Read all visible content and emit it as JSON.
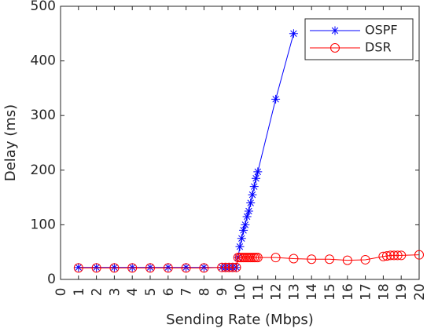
{
  "chart_data": {
    "type": "line",
    "x_label": "Sending Rate (Mbps)",
    "y_label": "Delay (ms)",
    "xlim": [
      0,
      20
    ],
    "xticks": [
      0,
      1,
      2,
      3,
      4,
      5,
      6,
      7,
      8,
      9,
      10,
      11,
      12,
      13,
      14,
      15,
      16,
      17,
      18,
      19,
      20
    ],
    "ylim": [
      0,
      500
    ],
    "yticks": [
      0,
      100,
      200,
      300,
      400,
      500
    ],
    "grid": false,
    "legend": "upper right",
    "series": [
      {
        "name": "OSPF",
        "color": "#0000ff",
        "marker": "asterisk",
        "x": [
          1,
          2,
          3,
          4,
          5,
          6,
          7,
          8,
          9,
          9.2,
          9.4,
          9.6,
          9.8,
          9.9,
          10,
          10.1,
          10.2,
          10.3,
          10.4,
          10.5,
          10.6,
          10.7,
          10.8,
          10.9,
          11,
          12,
          13
        ],
        "values": [
          22,
          22,
          22,
          22,
          22,
          22,
          22,
          22,
          22,
          22,
          22,
          22,
          22,
          40,
          60,
          75,
          90,
          100,
          115,
          125,
          140,
          155,
          170,
          185,
          197,
          330,
          450
        ]
      },
      {
        "name": "DSR",
        "color": "#ff0000",
        "marker": "circle",
        "x": [
          1,
          2,
          3,
          4,
          5,
          6,
          7,
          8,
          9,
          9.2,
          9.4,
          9.6,
          9.8,
          9.9,
          10,
          10.1,
          10.2,
          10.3,
          10.4,
          10.5,
          10.6,
          10.7,
          10.8,
          10.9,
          11,
          12,
          13,
          14,
          15,
          16,
          17,
          18,
          18.2,
          18.4,
          18.6,
          18.8,
          19,
          20
        ],
        "values": [
          21,
          21,
          21,
          21,
          21,
          21,
          21,
          21,
          22,
          22,
          22,
          22,
          22,
          40,
          40,
          40,
          40,
          40,
          40,
          40,
          40,
          40,
          40,
          40,
          40,
          40,
          38,
          37,
          37,
          35,
          36,
          42,
          43,
          44,
          44,
          44,
          44,
          45
        ]
      }
    ]
  }
}
